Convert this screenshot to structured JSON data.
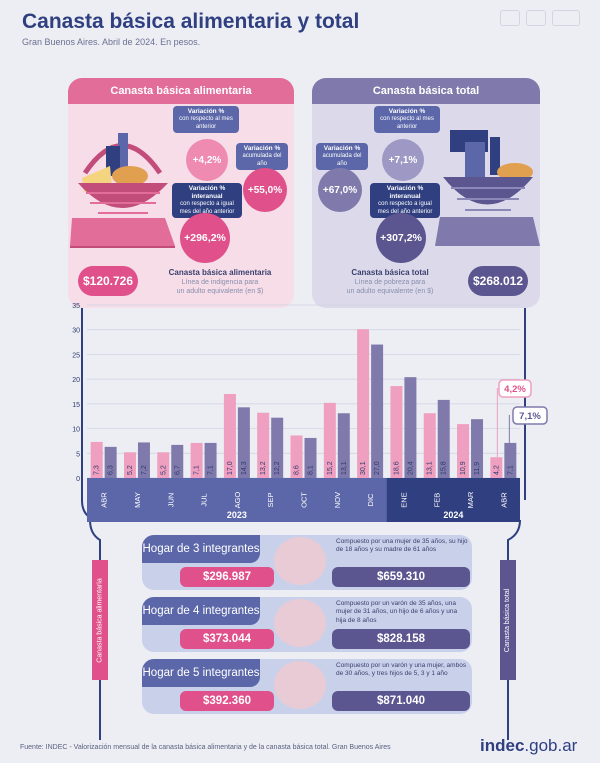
{
  "header": {
    "title": "Canasta básica alimentaria y total",
    "subtitle": "Gran Buenos Aires. Abril de 2024. En pesos."
  },
  "cba": {
    "title": "Canasta básica alimentaria",
    "var_m_title": "Variación %",
    "var_m_sub": "con respecto al mes anterior",
    "var_m_value": "+4,2%",
    "var_acc_title": "Variación %",
    "var_acc_sub": "acumulada del año",
    "var_acc_value": "+55,0%",
    "var_ia_title": "Variación % interanual",
    "var_ia_sub": "con respecto a igual mes del año anterior",
    "var_ia_value": "+296,2%",
    "amount": "$120.726",
    "caption_title": "Canasta básica alimentaria",
    "caption_line1": "Línea de indigencia para",
    "caption_line2": "un adulto equivalente (en $)",
    "side_label": "Canasta básica alimentaria"
  },
  "cbt": {
    "title": "Canasta básica total",
    "var_m_title": "Variación %",
    "var_m_sub": "con respecto al mes anterior",
    "var_m_value": "+7,1%",
    "var_acc_title": "Variación %",
    "var_acc_sub": "acumulada del año",
    "var_acc_value": "+67,0%",
    "var_ia_title": "Variación % interanual",
    "var_ia_sub": "con respecto a igual mes del año anterior",
    "var_ia_value": "+307,2%",
    "amount": "$268.012",
    "caption_title": "Canasta básica total",
    "caption_line1": "Línea de pobreza para",
    "caption_line2": "un adulto equivalente (en $)",
    "side_label": "Canasta básica total"
  },
  "households": [
    {
      "title": "Hogar de 3 integrantes",
      "description": "Compuesto por una mujer de 35 años, su hijo de 18 años y su madre de 61 años",
      "cba_value": "$296.987",
      "cbt_value": "$659.310"
    },
    {
      "title": "Hogar de 4 integrantes",
      "description": "Compuesto por un varón de 35 años, una mujer de 31 años, un hijo de 6 años y una hija de 8 años",
      "cba_value": "$373.044",
      "cbt_value": "$828.158"
    },
    {
      "title": "Hogar de 5 integrantes",
      "description": "Compuesto por un varón y una mujer, ambos de 30 años, y tres hijos de 5, 3 y 1 año",
      "cba_value": "$392.360",
      "cbt_value": "$871.040"
    }
  ],
  "footer": {
    "source": "Fuente: INDEC - Valorización mensual de la canasta básica alimentaria y de la canasta básica total. Gran Buenos Aires",
    "logo_main": "indec",
    "logo_suffix": ".gob.ar"
  },
  "colors": {
    "cba": "#ef9fbf",
    "cba_dark": "#e0508a",
    "cbt": "#7f7aab",
    "cbt_dark": "#5b5690",
    "navy": "#2f3f80",
    "axis_band": "#5b67a8"
  },
  "chart_data": {
    "type": "bar",
    "categories": [
      "ABR",
      "MAY",
      "JUN",
      "JUL",
      "AGO",
      "SEP",
      "OCT",
      "NOV",
      "DIC",
      "ENE",
      "FEB",
      "MAR",
      "ABR"
    ],
    "year_labels": [
      "2023",
      "2024"
    ],
    "year_spans": [
      [
        0,
        8
      ],
      [
        9,
        12
      ]
    ],
    "series": [
      {
        "values": [
          7.3,
          5.2,
          5.2,
          7.1,
          17.0,
          13.2,
          8.6,
          15.2,
          30.1,
          18.6,
          13.1,
          10.9,
          4.2
        ],
        "labels": [
          "7,3",
          "5,2",
          "5,2",
          "7,1",
          "17,0",
          "13,2",
          "8,6",
          "15,2",
          "30,1",
          "18,6",
          "13,1",
          "10,9",
          "4,2"
        ]
      },
      {
        "values": [
          6.3,
          7.2,
          6.7,
          7.1,
          14.3,
          12.2,
          8.1,
          13.1,
          27.0,
          20.4,
          15.8,
          11.9,
          7.1
        ],
        "labels": [
          "6,3",
          "7,2",
          "6,7",
          "7,1",
          "14,3",
          "12,2",
          "8,1",
          "13,1",
          "27,0",
          "20,4",
          "15,8",
          "11,9",
          "7,1"
        ]
      }
    ],
    "callouts": [
      "4,2%",
      "7,1%"
    ],
    "yticks": [
      0,
      5,
      10,
      15,
      20,
      25,
      30,
      35
    ],
    "ylim": [
      0,
      35
    ],
    "grid": true
  }
}
